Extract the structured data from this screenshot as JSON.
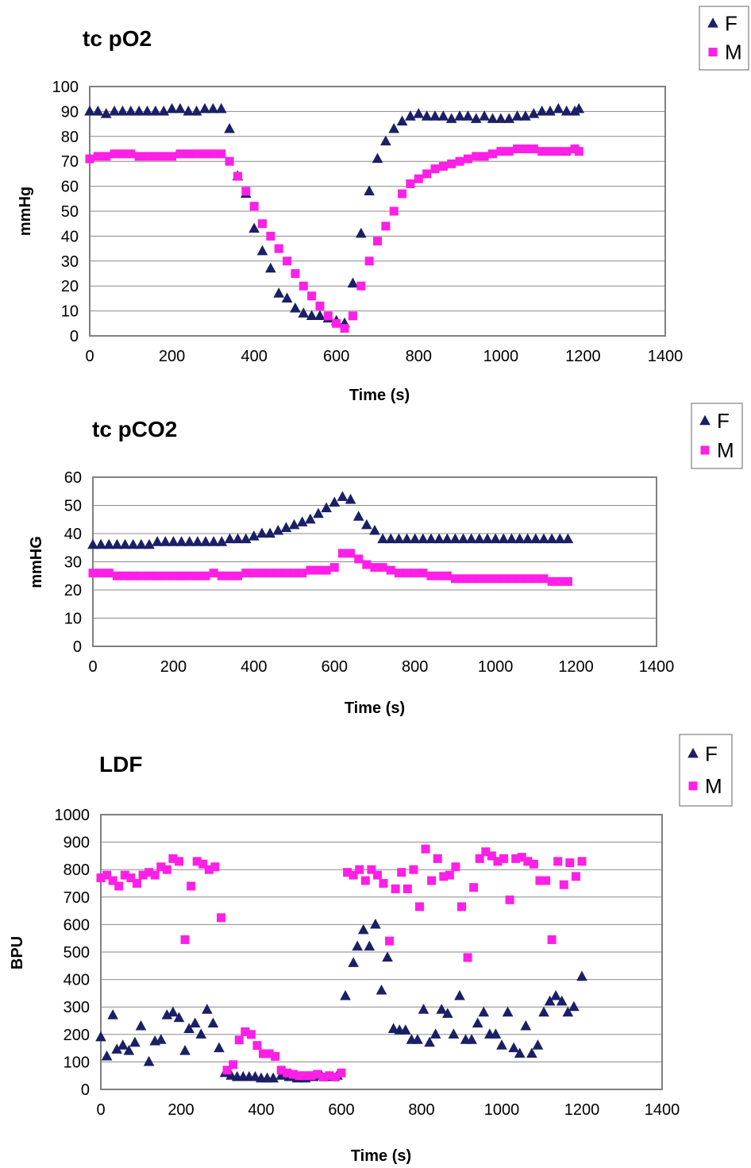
{
  "colors": {
    "F": "#1a1f66",
    "M": "#ff1fe6",
    "grid": "#8a8a8a",
    "frame": "#808080"
  },
  "chart_data": [
    {
      "type": "scatter",
      "title": "tc pO2",
      "xlabel": "Time (s)",
      "ylabel": "mmHg",
      "xlim": [
        0,
        1400
      ],
      "ylim": [
        0,
        100
      ],
      "x_ticks": [
        0,
        200,
        400,
        600,
        800,
        1000,
        1200,
        1400
      ],
      "y_ticks": [
        0,
        10,
        20,
        30,
        40,
        50,
        60,
        70,
        80,
        90,
        100
      ],
      "grid": true,
      "legend_position": "top-right",
      "series": [
        {
          "name": "F",
          "marker": "triangle",
          "x": [
            0,
            20,
            40,
            60,
            80,
            100,
            120,
            140,
            160,
            180,
            200,
            220,
            240,
            260,
            280,
            300,
            320,
            340,
            360,
            380,
            400,
            420,
            440,
            460,
            480,
            500,
            520,
            540,
            560,
            580,
            600,
            620,
            640,
            660,
            680,
            700,
            720,
            740,
            760,
            780,
            800,
            820,
            840,
            860,
            880,
            900,
            920,
            940,
            960,
            980,
            1000,
            1020,
            1040,
            1060,
            1080,
            1100,
            1120,
            1140,
            1160,
            1180,
            1190
          ],
          "y": [
            90,
            90,
            89,
            90,
            90,
            90,
            90,
            90,
            90,
            90,
            91,
            91,
            90,
            90,
            91,
            91,
            91,
            83,
            64,
            57,
            43,
            34,
            27,
            17,
            15,
            11,
            9,
            8,
            8,
            7,
            6,
            5,
            21,
            41,
            58,
            71,
            78,
            83,
            86,
            88,
            89,
            88,
            88,
            88,
            87,
            88,
            88,
            87,
            88,
            87,
            87,
            87,
            88,
            88,
            89,
            90,
            90,
            91,
            90,
            90,
            91
          ]
        },
        {
          "name": "M",
          "marker": "square",
          "x": [
            0,
            20,
            40,
            60,
            80,
            100,
            120,
            140,
            160,
            180,
            200,
            220,
            240,
            260,
            280,
            300,
            320,
            340,
            360,
            380,
            400,
            420,
            440,
            460,
            480,
            500,
            520,
            540,
            560,
            580,
            600,
            620,
            640,
            660,
            680,
            700,
            720,
            740,
            760,
            780,
            800,
            820,
            840,
            860,
            880,
            900,
            920,
            940,
            960,
            980,
            1000,
            1020,
            1040,
            1060,
            1080,
            1100,
            1120,
            1140,
            1160,
            1180,
            1190
          ],
          "y": [
            71,
            72,
            72,
            73,
            73,
            73,
            72,
            72,
            72,
            72,
            72,
            73,
            73,
            73,
            73,
            73,
            73,
            70,
            64,
            58,
            52,
            45,
            40,
            35,
            30,
            25,
            20,
            16,
            12,
            8,
            5,
            3,
            8,
            20,
            30,
            38,
            44,
            50,
            57,
            61,
            63,
            65,
            67,
            68,
            69,
            70,
            71,
            72,
            72,
            73,
            74,
            74,
            75,
            75,
            75,
            74,
            74,
            74,
            74,
            75,
            74
          ]
        }
      ]
    },
    {
      "type": "scatter",
      "title": "tc pCO2",
      "xlabel": "Time (s)",
      "ylabel": "mmHG",
      "xlim": [
        0,
        1400
      ],
      "ylim": [
        0,
        60
      ],
      "x_ticks": [
        0,
        200,
        400,
        600,
        800,
        1000,
        1200,
        1400
      ],
      "y_ticks": [
        0,
        10,
        20,
        30,
        40,
        50,
        60
      ],
      "grid": true,
      "legend_position": "top-right",
      "series": [
        {
          "name": "F",
          "marker": "triangle",
          "x": [
            0,
            20,
            40,
            60,
            80,
            100,
            120,
            140,
            160,
            180,
            200,
            220,
            240,
            260,
            280,
            300,
            320,
            340,
            360,
            380,
            400,
            420,
            440,
            460,
            480,
            500,
            520,
            540,
            560,
            580,
            600,
            620,
            640,
            660,
            680,
            700,
            720,
            740,
            760,
            780,
            800,
            820,
            840,
            860,
            880,
            900,
            920,
            940,
            960,
            980,
            1000,
            1020,
            1040,
            1060,
            1080,
            1100,
            1120,
            1140,
            1160,
            1180
          ],
          "y": [
            36,
            36,
            36,
            36,
            36,
            36,
            36,
            36,
            37,
            37,
            37,
            37,
            37,
            37,
            37,
            37,
            37,
            38,
            38,
            38,
            39,
            40,
            40,
            41,
            42,
            43,
            44,
            45,
            47,
            49,
            51,
            53,
            52,
            46,
            43,
            41,
            38,
            38,
            38,
            38,
            38,
            38,
            38,
            38,
            38,
            38,
            38,
            38,
            38,
            38,
            38,
            38,
            38,
            38,
            38,
            38,
            38,
            38,
            38,
            38
          ]
        },
        {
          "name": "M",
          "marker": "square",
          "x": [
            0,
            20,
            40,
            60,
            80,
            100,
            120,
            140,
            160,
            180,
            200,
            220,
            240,
            260,
            280,
            300,
            320,
            340,
            360,
            380,
            400,
            420,
            440,
            460,
            480,
            500,
            520,
            540,
            560,
            580,
            600,
            620,
            640,
            660,
            680,
            700,
            720,
            740,
            760,
            780,
            800,
            820,
            840,
            860,
            880,
            900,
            920,
            940,
            960,
            980,
            1000,
            1020,
            1040,
            1060,
            1080,
            1100,
            1120,
            1140,
            1160,
            1180
          ],
          "y": [
            26,
            26,
            26,
            25,
            25,
            25,
            25,
            25,
            25,
            25,
            25,
            25,
            25,
            25,
            25,
            26,
            25,
            25,
            25,
            26,
            26,
            26,
            26,
            26,
            26,
            26,
            26,
            27,
            27,
            27,
            28,
            33,
            33,
            31,
            29,
            28,
            28,
            27,
            26,
            26,
            26,
            26,
            25,
            25,
            25,
            24,
            24,
            24,
            24,
            24,
            24,
            24,
            24,
            24,
            24,
            24,
            24,
            23,
            23,
            23
          ]
        }
      ]
    },
    {
      "type": "scatter",
      "title": "LDF",
      "xlabel": "Time (s)",
      "ylabel": "BPU",
      "xlim": [
        0,
        1400
      ],
      "ylim": [
        0,
        1000
      ],
      "x_ticks": [
        0,
        200,
        400,
        600,
        800,
        1000,
        1200,
        1400
      ],
      "y_ticks": [
        0,
        100,
        200,
        300,
        400,
        500,
        600,
        700,
        800,
        900,
        1000
      ],
      "grid": true,
      "legend_position": "top-right",
      "series": [
        {
          "name": "F",
          "marker": "triangle",
          "x": [
            0,
            15,
            30,
            40,
            55,
            70,
            85,
            100,
            120,
            135,
            150,
            165,
            180,
            195,
            210,
            220,
            235,
            250,
            265,
            280,
            295,
            310,
            325,
            340,
            355,
            370,
            385,
            400,
            415,
            430,
            450,
            470,
            490,
            510,
            530,
            550,
            570,
            590,
            610,
            630,
            640,
            655,
            670,
            685,
            700,
            715,
            730,
            745,
            760,
            775,
            790,
            805,
            820,
            835,
            850,
            865,
            880,
            895,
            910,
            925,
            940,
            955,
            970,
            985,
            1000,
            1015,
            1030,
            1045,
            1060,
            1075,
            1090,
            1105,
            1120,
            1135,
            1150,
            1165,
            1180,
            1200
          ],
          "y": [
            190,
            120,
            270,
            145,
            160,
            140,
            170,
            230,
            100,
            175,
            180,
            270,
            280,
            260,
            140,
            220,
            240,
            200,
            290,
            240,
            150,
            60,
            50,
            45,
            45,
            45,
            45,
            40,
            40,
            40,
            50,
            45,
            40,
            40,
            45,
            50,
            45,
            50,
            340,
            460,
            520,
            580,
            520,
            600,
            360,
            480,
            220,
            215,
            215,
            180,
            180,
            290,
            170,
            200,
            290,
            275,
            200,
            340,
            180,
            180,
            240,
            280,
            200,
            200,
            160,
            280,
            150,
            130,
            230,
            130,
            160,
            280,
            320,
            340,
            320,
            280,
            300,
            410
          ]
        },
        {
          "name": "M",
          "marker": "square",
          "x": [
            0,
            15,
            30,
            45,
            60,
            75,
            90,
            105,
            120,
            135,
            150,
            165,
            180,
            195,
            210,
            225,
            240,
            255,
            270,
            285,
            300,
            315,
            330,
            345,
            360,
            375,
            390,
            405,
            420,
            435,
            450,
            465,
            480,
            495,
            510,
            525,
            540,
            555,
            570,
            585,
            600,
            615,
            630,
            645,
            660,
            675,
            690,
            705,
            720,
            735,
            750,
            765,
            780,
            795,
            810,
            825,
            840,
            855,
            870,
            885,
            900,
            915,
            930,
            945,
            960,
            975,
            990,
            1005,
            1020,
            1035,
            1050,
            1065,
            1080,
            1095,
            1110,
            1125,
            1140,
            1155,
            1170,
            1185,
            1200
          ],
          "y": [
            770,
            780,
            760,
            740,
            780,
            770,
            750,
            780,
            790,
            780,
            810,
            800,
            840,
            830,
            545,
            740,
            830,
            820,
            800,
            810,
            625,
            70,
            90,
            180,
            210,
            200,
            160,
            130,
            130,
            120,
            70,
            60,
            55,
            50,
            50,
            50,
            55,
            45,
            50,
            45,
            60,
            790,
            780,
            800,
            760,
            800,
            780,
            750,
            540,
            730,
            790,
            730,
            800,
            665,
            875,
            760,
            840,
            775,
            780,
            810,
            665,
            480,
            735,
            840,
            865,
            850,
            830,
            840,
            690,
            840,
            845,
            830,
            820,
            760,
            760,
            545,
            830,
            745,
            825,
            775,
            830
          ]
        }
      ]
    }
  ]
}
